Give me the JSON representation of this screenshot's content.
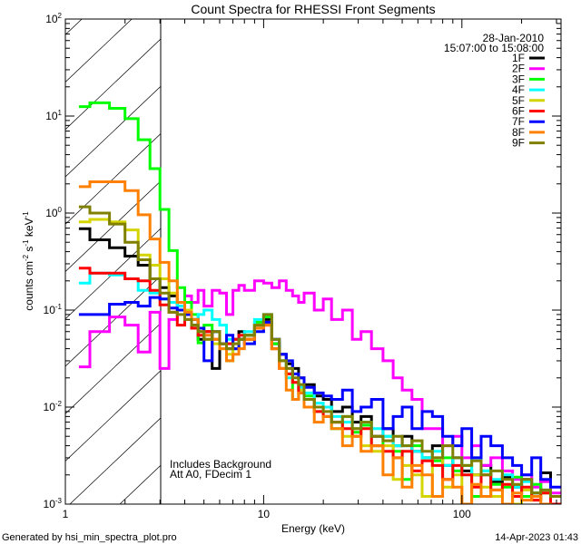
{
  "chart_data": {
    "type": "line",
    "title": "Count Spectra for RHESSI Front Segments",
    "xlabel": "Energy (keV)",
    "ylabel": {
      "parts": [
        "counts cm",
        "-2",
        " s",
        "-1",
        " keV",
        "-1"
      ]
    },
    "xscale": "log",
    "yscale": "log",
    "xlim": [
      1,
      316.2
    ],
    "ylim": [
      0.001,
      100
    ],
    "x_ticks": [
      {
        "value": 1,
        "label": "1"
      },
      {
        "value": 10,
        "label": "10"
      },
      {
        "value": 100,
        "label": "100"
      }
    ],
    "y_ticks": [
      {
        "value": 100,
        "base": "10",
        "exp": "2"
      },
      {
        "value": 10,
        "base": "10",
        "exp": "1"
      },
      {
        "value": 1,
        "base": "10",
        "exp": "0"
      },
      {
        "value": 0.1,
        "base": "10",
        "exp": "-1"
      },
      {
        "value": 0.01,
        "base": "10",
        "exp": "-2"
      },
      {
        "value": 0.001,
        "base": "10",
        "exp": "-3"
      }
    ],
    "hatched_region_keV": [
      1,
      3
    ],
    "legend": {
      "placement": "top-right",
      "date": "28-Jan-2010",
      "time_range": "15:07:00 to 15:08:00"
    },
    "annotations": [
      "Includes Background",
      "Att A0, FDecim 1"
    ],
    "step": true,
    "energy_edges": [
      1.17,
      1.33,
      1.67,
      2.0,
      2.33,
      2.67,
      3.0,
      3.33,
      3.67,
      4.0,
      4.33,
      4.67,
      5.0,
      5.5,
      6.0,
      6.5,
      7.0,
      7.5,
      8.0,
      9,
      10,
      11,
      12,
      13,
      14,
      15,
      16,
      18,
      20,
      22,
      25,
      28,
      31,
      35,
      40,
      45,
      50,
      56,
      63,
      71,
      80,
      90,
      100,
      112,
      125,
      140,
      160,
      180,
      200,
      225,
      250,
      280,
      316
    ],
    "series": [
      {
        "name": "1F",
        "color": "#000000",
        "values": [
          0.69,
          0.53,
          0.44,
          0.36,
          0.29,
          0.21,
          0.17,
          0.14,
          0.11,
          0.09,
          0.07,
          0.05,
          0.06,
          0.025,
          0.045,
          0.04,
          0.05,
          0.06,
          0.055,
          0.07,
          0.08,
          0.045,
          0.035,
          0.028,
          0.025,
          0.02,
          0.017,
          0.013,
          0.012,
          0.009,
          0.01,
          0.007,
          0.008,
          0.005,
          0.006,
          0.004,
          0.005,
          0.0035,
          0.003,
          0.004,
          0.0025,
          0.003,
          0.0022,
          0.002,
          0.0025,
          0.0017,
          0.0019,
          0.0015,
          0.0018,
          0.0013,
          0.0021,
          0.0012
        ]
      },
      {
        "name": "2F",
        "color": "#ff00ff",
        "values": [
          0.026,
          0.06,
          0.085,
          0.07,
          0.037,
          0.095,
          0.025,
          0.08,
          0.1,
          0.14,
          0.12,
          0.16,
          0.11,
          0.16,
          0.15,
          0.09,
          0.16,
          0.18,
          0.16,
          0.2,
          0.19,
          0.17,
          0.2,
          0.16,
          0.14,
          0.12,
          0.15,
          0.1,
          0.13,
          0.08,
          0.1,
          0.05,
          0.06,
          0.04,
          0.03,
          0.02,
          0.015,
          0.012,
          0.006,
          0.006,
          0.004,
          0.005,
          0.003,
          0.004,
          0.0025,
          0.003,
          0.0022,
          0.0018,
          0.002,
          0.0015,
          0.0017,
          0.0013
        ]
      },
      {
        "name": "3F",
        "color": "#00ff00",
        "values": [
          12.5,
          13.7,
          12,
          9.4,
          5.7,
          2.87,
          1.09,
          0.41,
          0.17,
          0.12,
          0.09,
          0.046,
          0.07,
          0.06,
          0.045,
          0.03,
          0.04,
          0.05,
          0.055,
          0.075,
          0.085,
          0.045,
          0.03,
          0.022,
          0.012,
          0.017,
          0.013,
          0.009,
          0.01,
          0.006,
          0.008,
          0.0055,
          0.0065,
          0.004,
          0.005,
          0.0035,
          0.0018,
          0.004,
          0.003,
          0.0028,
          0.003,
          0.0022,
          0.0025,
          0.0012,
          0.0022,
          0.0016,
          0.0015,
          0.0019,
          0.0012,
          0.0016,
          0.0013,
          0.001
        ]
      },
      {
        "name": "4F",
        "color": "#00ffff",
        "values": [
          0.19,
          0.24,
          0.23,
          0.21,
          0.16,
          0.15,
          0.13,
          0.12,
          0.11,
          0.1,
          0.08,
          0.09,
          0.1,
          0.08,
          0.07,
          0.05,
          0.04,
          0.05,
          0.06,
          0.08,
          0.09,
          0.05,
          0.03,
          0.02,
          0.018,
          0.016,
          0.014,
          0.011,
          0.01,
          0.008,
          0.007,
          0.006,
          0.007,
          0.006,
          0.005,
          0.004,
          0.004,
          0.0035,
          0.003,
          0.0035,
          0.0025,
          0.003,
          0.002,
          0.003,
          0.0022,
          0.0018,
          0.002,
          0.0015,
          0.0017,
          0.0013,
          0.0014,
          0.0012
        ]
      },
      {
        "name": "5F",
        "color": "#d4d400",
        "values": [
          0.81,
          0.86,
          0.81,
          0.67,
          0.37,
          0.29,
          0.21,
          0.15,
          0.12,
          0.1,
          0.08,
          0.06,
          0.05,
          0.045,
          0.04,
          0.035,
          0.04,
          0.05,
          0.05,
          0.07,
          0.075,
          0.04,
          0.03,
          0.025,
          0.018,
          0.015,
          0.012,
          0.01,
          0.008,
          0.007,
          0.005,
          0.006,
          0.004,
          0.0035,
          0.004,
          0.0018,
          0.0025,
          0.002,
          0.0012,
          0.003,
          0.0015,
          0.002,
          0.0009,
          0.002,
          0.0015,
          0.0012,
          0.0016,
          0.001,
          0.0014,
          0.0011,
          0.0013,
          0.0009
        ]
      },
      {
        "name": "6F",
        "color": "#ff0000",
        "values": [
          0.27,
          0.24,
          0.24,
          0.21,
          0.2,
          0.16,
          0.113,
          0.095,
          0.07,
          0.08,
          0.065,
          0.055,
          0.06,
          0.05,
          0.045,
          0.045,
          0.05,
          0.055,
          0.05,
          0.065,
          0.07,
          0.04,
          0.025,
          0.022,
          0.018,
          0.014,
          0.012,
          0.009,
          0.008,
          0.007,
          0.006,
          0.005,
          0.006,
          0.004,
          0.0035,
          0.003,
          0.0035,
          0.0022,
          0.0028,
          0.0025,
          0.0018,
          0.0025,
          0.002,
          0.0015,
          0.002,
          0.0014,
          0.0016,
          0.0012,
          0.0015,
          0.0011,
          0.0013,
          0.001
        ]
      },
      {
        "name": "7F",
        "color": "#0000ff",
        "values": [
          0.09,
          0.09,
          0.115,
          0.12,
          0.11,
          0.135,
          0.13,
          0.105,
          0.1,
          0.09,
          0.08,
          0.065,
          0.03,
          0.06,
          0.045,
          0.055,
          0.04,
          0.05,
          0.045,
          0.06,
          0.075,
          0.05,
          0.035,
          0.03,
          0.022,
          0.02,
          0.016,
          0.014,
          0.013,
          0.012,
          0.015,
          0.009,
          0.01,
          0.012,
          0.006,
          0.008,
          0.01,
          0.006,
          0.009,
          0.008,
          0.005,
          0.004,
          0.006,
          0.003,
          0.005,
          0.004,
          0.003,
          0.0025,
          0.002,
          0.003,
          0.0018,
          0.0015
        ]
      },
      {
        "name": "8F",
        "color": "#ff8000",
        "values": [
          1.87,
          2.1,
          2.1,
          1.7,
          0.96,
          0.54,
          0.31,
          0.2,
          0.12,
          0.095,
          0.08,
          0.06,
          0.055,
          0.05,
          0.04,
          0.03,
          0.035,
          0.04,
          0.05,
          0.065,
          0.07,
          0.04,
          0.025,
          0.015,
          0.012,
          0.014,
          0.01,
          0.007,
          0.008,
          0.006,
          0.004,
          0.005,
          0.0035,
          0.004,
          0.002,
          0.003,
          0.0015,
          0.0025,
          0.002,
          0.0012,
          0.0018,
          0.0015,
          0.001,
          0.0016,
          0.0012,
          0.0014,
          0.001,
          0.0013,
          0.0011,
          0.0012,
          0.001,
          0.0009
        ]
      },
      {
        "name": "9F",
        "color": "#808000",
        "values": [
          1.16,
          1.0,
          0.77,
          0.5,
          0.33,
          0.21,
          0.15,
          0.095,
          0.09,
          0.08,
          0.07,
          0.06,
          0.05,
          0.06,
          0.045,
          0.04,
          0.045,
          0.05,
          0.055,
          0.07,
          0.09,
          0.05,
          0.03,
          0.025,
          0.02,
          0.017,
          0.012,
          0.01,
          0.009,
          0.007,
          0.008,
          0.006,
          0.007,
          0.005,
          0.0045,
          0.005,
          0.004,
          0.0045,
          0.0035,
          0.003,
          0.004,
          0.003,
          0.0025,
          0.0028,
          0.002,
          0.0022,
          0.0018,
          0.0016,
          0.0018,
          0.0013,
          0.0014,
          0.0012
        ]
      }
    ]
  },
  "footer": {
    "generated_by": "Generated by hsi_min_spectra_plot.pro",
    "timestamp": "14-Apr-2023 01:43"
  }
}
